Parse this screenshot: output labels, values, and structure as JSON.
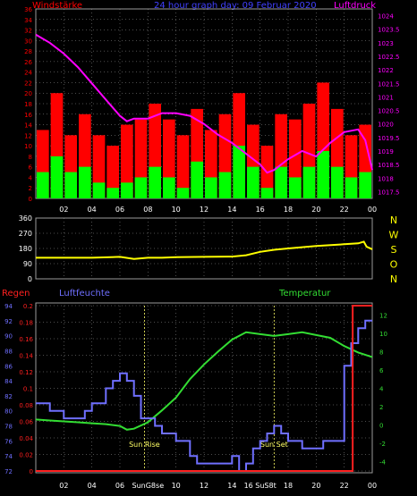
{
  "colors": {
    "wind": "#ff0000",
    "gust_green": "#00ff00",
    "pressure": "#ff00ff",
    "direction": "#ffff00",
    "rain": "#ff2020",
    "humidity": "#6f6fff",
    "temperature": "#33dd33",
    "axis": "#ffffff",
    "grid": "#9a9a9a"
  },
  "chart_data": [
    {
      "type": "bar",
      "title": "24 hour graph day: 09 Februar 2020",
      "left_label": "Windstärke",
      "right_label": "Luftdruck",
      "x_ticks": [
        "02",
        "04",
        "06",
        "08",
        "10",
        "12",
        "14",
        "16",
        "18",
        "20",
        "22",
        "00"
      ],
      "y_left_ticks": [
        "0",
        "2",
        "4",
        "6",
        "8",
        "10",
        "12",
        "14",
        "16",
        "18",
        "20",
        "22",
        "24",
        "26",
        "28",
        "30",
        "32",
        "34",
        "36"
      ],
      "y_left_range": [
        0,
        36
      ],
      "y_right_ticks": [
        "1017.5",
        "1018",
        "1018.5",
        "1019",
        "1019.5",
        "1020",
        "1020.5",
        "1021",
        "1021.5",
        "1022",
        "1022.5",
        "1023",
        "1023.5",
        "1024"
      ],
      "y_right_range": [
        1017.25,
        1024.25
      ],
      "x_range_hours": [
        0,
        24
      ],
      "series": [
        {
          "name": "Luftdruck",
          "kind": "line",
          "axis": "right",
          "x": [
            0,
            1,
            2,
            3,
            4,
            5,
            6,
            6.5,
            7,
            8,
            9,
            10,
            11,
            12,
            13,
            14,
            15,
            16,
            16.5,
            17,
            18,
            19,
            20,
            21,
            22,
            23,
            23.5,
            24
          ],
          "values": [
            1023.3,
            1023,
            1022.6,
            1022.1,
            1021.5,
            1020.9,
            1020.3,
            1020.1,
            1020.2,
            1020.2,
            1020.4,
            1020.4,
            1020.3,
            1020,
            1019.6,
            1019.3,
            1018.9,
            1018.5,
            1018.2,
            1018.3,
            1018.7,
            1019,
            1018.8,
            1019.3,
            1019.7,
            1019.8,
            1019.4,
            1018.3
          ]
        },
        {
          "name": "Böen",
          "kind": "bars",
          "axis": "left",
          "x": [
            0,
            1,
            2,
            3,
            4,
            5,
            6,
            7,
            8,
            9,
            10,
            11,
            12,
            13,
            14,
            15,
            16,
            17,
            18,
            19,
            20,
            21,
            22,
            23
          ],
          "values": [
            13,
            20,
            12,
            16,
            12,
            10,
            14,
            15,
            18,
            15,
            12,
            17,
            13,
            16,
            20,
            14,
            10,
            16,
            15,
            18,
            22,
            17,
            12,
            14
          ]
        },
        {
          "name": "Windstärke",
          "kind": "bars",
          "axis": "left",
          "x": [
            0,
            1,
            2,
            3,
            4,
            5,
            6,
            7,
            8,
            9,
            10,
            11,
            12,
            13,
            14,
            15,
            16,
            17,
            18,
            19,
            20,
            21,
            22,
            23
          ],
          "values": [
            5,
            8,
            5,
            6,
            3,
            2,
            3,
            4,
            6,
            4,
            2,
            7,
            4,
            5,
            10,
            6,
            2,
            6,
            4,
            6,
            9,
            6,
            4,
            5
          ]
        }
      ]
    },
    {
      "type": "line",
      "title": "",
      "right_labels": [
        "N",
        "W",
        "S",
        "O",
        "N"
      ],
      "y_ticks": [
        "0",
        "90",
        "180",
        "270",
        "360"
      ],
      "y_range": [
        0,
        360
      ],
      "x_range_hours": [
        0,
        24
      ],
      "series": [
        {
          "name": "Windrichtung",
          "x": [
            0,
            2,
            4,
            6,
            7,
            8,
            9,
            10,
            12,
            14,
            15,
            16,
            17,
            18,
            20,
            22,
            23,
            23.4,
            23.6,
            24
          ],
          "values": [
            125,
            125,
            125,
            130,
            118,
            125,
            125,
            128,
            130,
            132,
            140,
            160,
            172,
            180,
            195,
            205,
            210,
            220,
            190,
            175
          ]
        }
      ]
    },
    {
      "type": "line",
      "title": "",
      "labels": {
        "rain": "Regen",
        "humidity": "Luftfeuchte",
        "temperature": "Temperatur"
      },
      "x_ticks": [
        "02",
        "04",
        "06",
        "SunG8se",
        "10",
        "12",
        "14",
        "16 SuS8t",
        "18",
        "20",
        "22",
        "00"
      ],
      "markers": [
        {
          "label": "Sun Rise",
          "x": 7.75
        },
        {
          "label": "Sun Set",
          "x": 17.0
        }
      ],
      "y_rain_ticks": [
        "0",
        "0.02",
        "0.04",
        "0.06",
        "0.08",
        "0.1",
        "0.12",
        "0.14",
        "0.16",
        "0.18",
        "0.2"
      ],
      "y_rain_range": [
        0,
        0.2
      ],
      "y_humidity_ticks": [
        "72",
        "74",
        "76",
        "78",
        "80",
        "82",
        "84",
        "86",
        "88",
        "90",
        "92",
        "94"
      ],
      "y_humidity_range": [
        72,
        94
      ],
      "y_temp_ticks": [
        "-4",
        "-2",
        "0",
        "2",
        "4",
        "6",
        "8",
        "10",
        "12"
      ],
      "y_temp_range": [
        -5,
        13
      ],
      "x_range_hours": [
        0,
        24
      ],
      "series": [
        {
          "name": "Regen",
          "axis": "rain",
          "x": [
            0,
            22.6,
            22.6,
            24
          ],
          "values": [
            0,
            0,
            0.2,
            0.2
          ]
        },
        {
          "name": "Luftfeuchte",
          "axis": "humidity",
          "x": [
            0,
            1,
            1.5,
            2,
            3,
            3.5,
            4,
            5,
            5.5,
            6,
            6.5,
            7,
            7.5,
            8,
            8.5,
            9,
            10,
            11,
            11.5,
            12,
            13,
            14,
            14.5,
            15,
            15.5,
            16,
            16.5,
            17,
            17.5,
            18,
            19,
            20,
            20.5,
            21,
            21.5,
            22,
            22.5,
            23,
            23.5,
            24
          ],
          "values": [
            81,
            80,
            80,
            79,
            79,
            80,
            81,
            83,
            84,
            85,
            84,
            82,
            79,
            79,
            78,
            77,
            76,
            74,
            73,
            73,
            73,
            74,
            72,
            73,
            75,
            76,
            77,
            78,
            77,
            76,
            75,
            75,
            76,
            76,
            76,
            86,
            89,
            91,
            92,
            92
          ]
        },
        {
          "name": "Temperatur",
          "axis": "temp",
          "x": [
            0,
            1,
            2,
            3,
            4,
            5,
            6,
            6.5,
            7,
            8,
            9,
            10,
            11,
            12,
            13,
            14,
            15,
            16,
            17,
            18,
            19,
            20,
            21,
            22,
            23,
            24
          ],
          "values": [
            0.6,
            0.5,
            0.4,
            0.3,
            0.2,
            0.1,
            -0.1,
            -0.5,
            -0.4,
            0.3,
            1.6,
            3,
            5,
            6.6,
            8,
            9.3,
            10.1,
            9.9,
            9.7,
            9.9,
            10.1,
            9.8,
            9.5,
            8.6,
            7.9,
            7.4
          ]
        }
      ]
    }
  ]
}
